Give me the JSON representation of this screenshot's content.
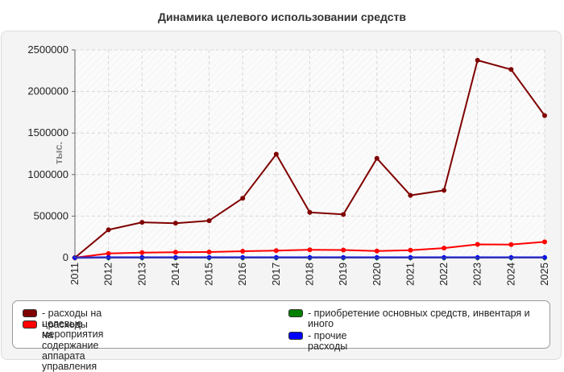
{
  "chart_data": {
    "type": "line",
    "title": "Динамика целевого использовании средств",
    "ylabel": "тыс.",
    "xlabel": "",
    "ylim": [
      0,
      2500000
    ],
    "yticks": [
      "0",
      "500000",
      "1000000",
      "1500000",
      "2000000",
      "2500000"
    ],
    "x": [
      "2011",
      "2012",
      "2013",
      "2014",
      "2015",
      "2016",
      "2017",
      "2018",
      "2019",
      "2020",
      "2021",
      "2022",
      "2023",
      "2024",
      "2025"
    ],
    "grid": true,
    "legend_position": "bottom",
    "series": [
      {
        "name": "- расходы на целевые мероприятия",
        "color": "#800000",
        "values": [
          0,
          335000,
          425000,
          415000,
          445000,
          715000,
          1245000,
          545000,
          520000,
          1195000,
          750000,
          810000,
          2375000,
          2265000,
          1710000
        ]
      },
      {
        "name": "- расходы на содержание аппарата управления",
        "color": "#ff0000",
        "values": [
          0,
          50000,
          60000,
          65000,
          68000,
          78000,
          85000,
          95000,
          92000,
          80000,
          90000,
          115000,
          160000,
          158000,
          190000
        ]
      },
      {
        "name": "- приобретение основных средств, инвентаря и иного",
        "color": "#008000",
        "values": [
          0,
          0,
          0,
          0,
          0,
          0,
          0,
          0,
          0,
          0,
          0,
          0,
          0,
          0,
          0
        ]
      },
      {
        "name": "- прочие расходы",
        "color": "#0000ff",
        "values": [
          0,
          3000,
          3000,
          3000,
          3000,
          3000,
          3000,
          3000,
          3000,
          3000,
          3000,
          3000,
          3000,
          3000,
          3000
        ]
      }
    ]
  }
}
